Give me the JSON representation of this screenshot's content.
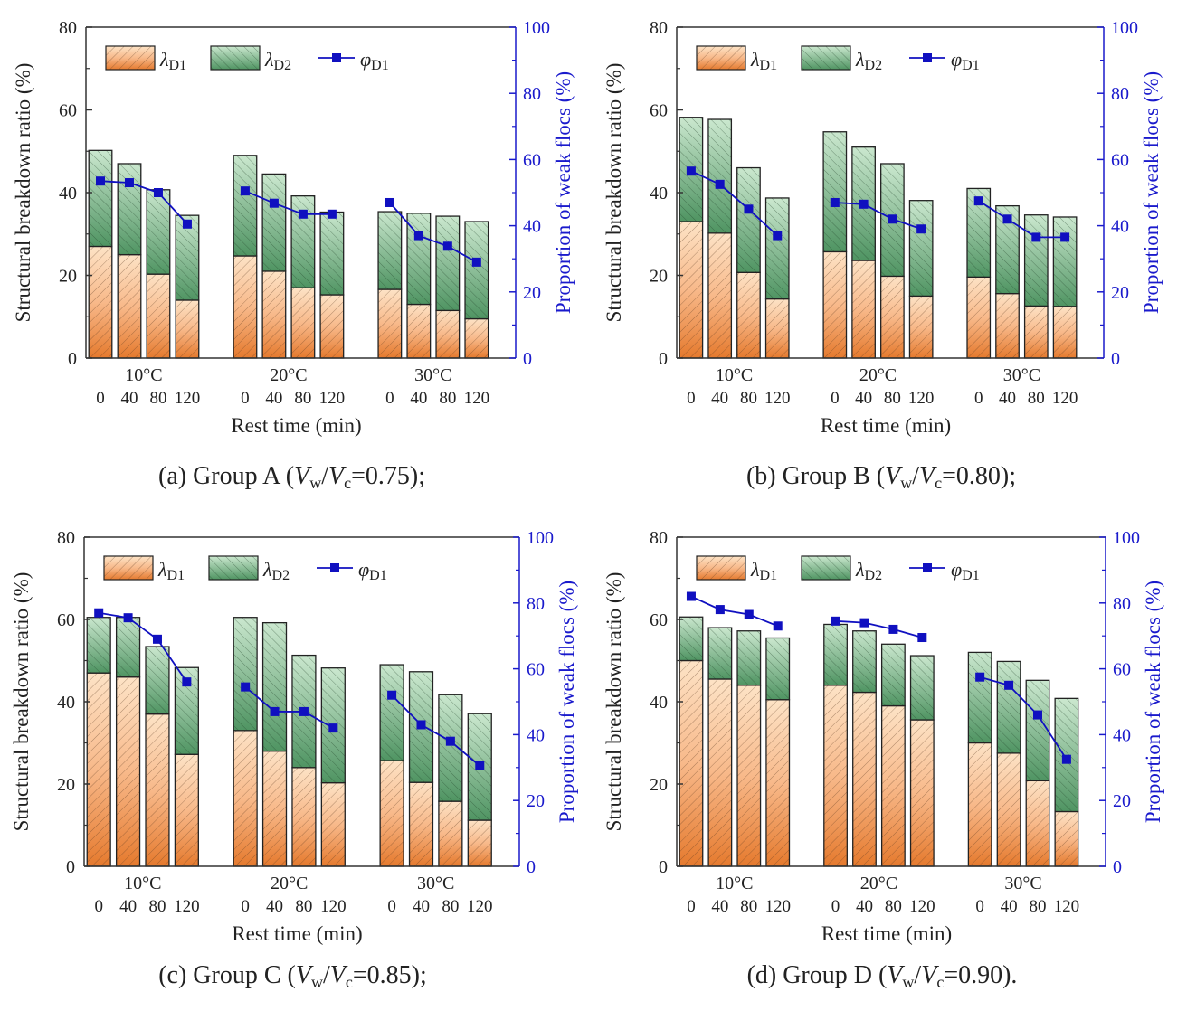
{
  "colors": {
    "lambda_d1": "#e8843f",
    "lambda_d1_light": "#fde3c6",
    "lambda_d2": "#5a9e6c",
    "lambda_d2_light": "#cbe8cf",
    "phi": "#1010c0",
    "right_axis": "#1a1acc"
  },
  "chart_data": [
    {
      "type": "bar",
      "subtype": "stacked bar + line (dual axis)",
      "caption": {
        "prefix": "(a) Group A (",
        "v1": "V",
        "s1": "w",
        "slash": "/",
        "v2": "V",
        "s2": "c",
        "suffix": "=0.75);"
      },
      "ylabel": "Structural breakdown ratio (%)",
      "y2label": "Proportion of weak flocs (%)",
      "xlabel": "Rest time (min)",
      "ylim": [
        0,
        80
      ],
      "y2lim": [
        0,
        100
      ],
      "yticks": [
        "0",
        "20",
        "40",
        "60",
        "80"
      ],
      "y2ticks": [
        "0",
        "20",
        "40",
        "60",
        "80",
        "100"
      ],
      "groups": [
        "10°C",
        "20°C",
        "30°C"
      ],
      "categories": [
        "0",
        "40",
        "80",
        "120"
      ],
      "legend": [
        {
          "sym": "λ",
          "sub": "D1"
        },
        {
          "sym": "λ",
          "sub": "D2"
        },
        {
          "sym": "φ",
          "sub": "D1"
        }
      ],
      "legend_position": "top-left",
      "lambda_d1": [
        27,
        25,
        20.3,
        14,
        24.7,
        21,
        17,
        15.3,
        16.6,
        13,
        11.5,
        9.5
      ],
      "lambda_total": [
        50.2,
        47,
        40.7,
        34.5,
        49,
        44.5,
        39.2,
        35.3,
        35.4,
        35,
        34.3,
        33
      ],
      "phi_d1": [
        53.5,
        53,
        50,
        40.5,
        50.5,
        46.8,
        43.5,
        43.5,
        47,
        37,
        33.8,
        29
      ]
    },
    {
      "type": "bar",
      "subtype": "stacked bar + line (dual axis)",
      "caption": {
        "prefix": "(b) Group B (",
        "v1": "V",
        "s1": "w",
        "slash": "/",
        "v2": "V",
        "s2": "c",
        "suffix": "=0.80);"
      },
      "ylabel": "Structural breakdown ratio (%)",
      "y2label": "Proportion of weak flocs (%)",
      "xlabel": "Rest time (min)",
      "ylim": [
        0,
        80
      ],
      "y2lim": [
        0,
        100
      ],
      "yticks": [
        "0",
        "20",
        "40",
        "60",
        "80"
      ],
      "y2ticks": [
        "0",
        "20",
        "40",
        "60",
        "80",
        "100"
      ],
      "groups": [
        "10°C",
        "20°C",
        "30°C"
      ],
      "categories": [
        "0",
        "40",
        "80",
        "120"
      ],
      "legend": [
        {
          "sym": "λ",
          "sub": "D1"
        },
        {
          "sym": "λ",
          "sub": "D2"
        },
        {
          "sym": "φ",
          "sub": "D1"
        }
      ],
      "legend_position": "top-left",
      "lambda_d1": [
        33,
        30.2,
        20.7,
        14.3,
        25.7,
        23.6,
        19.8,
        15,
        19.6,
        15.6,
        12.6,
        12.5
      ],
      "lambda_total": [
        58.2,
        57.7,
        46,
        38.7,
        54.7,
        51,
        47,
        38.1,
        41,
        36.8,
        34.6,
        34.1
      ],
      "phi_d1": [
        56.5,
        52.5,
        45,
        37,
        47,
        46.5,
        42,
        39,
        47.5,
        42,
        36.5,
        36.5
      ]
    },
    {
      "type": "bar",
      "subtype": "stacked bar + line (dual axis)",
      "caption": {
        "prefix": "(c) Group C (",
        "v1": "V",
        "s1": "w",
        "slash": "/",
        "v2": "V",
        "s2": "c",
        "suffix": "=0.85);"
      },
      "ylabel": "Structural breakdown ratio (%)",
      "y2label": "Proportion of weak flocs (%)",
      "xlabel": "Rest time (min)",
      "ylim": [
        0,
        80
      ],
      "y2lim": [
        0,
        100
      ],
      "yticks": [
        "0",
        "20",
        "40",
        "60",
        "80"
      ],
      "y2ticks": [
        "0",
        "20",
        "40",
        "60",
        "80",
        "100"
      ],
      "groups": [
        "10°C",
        "20°C",
        "30°C"
      ],
      "categories": [
        "0",
        "40",
        "80",
        "120"
      ],
      "legend": [
        {
          "sym": "λ",
          "sub": "D1"
        },
        {
          "sym": "λ",
          "sub": "D2"
        },
        {
          "sym": "φ",
          "sub": "D1"
        }
      ],
      "legend_position": "top-left",
      "lambda_d1": [
        47,
        46,
        37,
        27.2,
        33,
        28,
        24,
        20.3,
        25.7,
        20.4,
        15.8,
        11.2
      ],
      "lambda_total": [
        60.5,
        60.5,
        53.4,
        48.3,
        60.5,
        59.2,
        51.3,
        48.2,
        49,
        47.3,
        41.7,
        37.1
      ],
      "phi_d1": [
        77,
        75.5,
        69,
        56,
        54.5,
        47,
        47,
        42,
        52,
        43,
        38,
        30.5
      ]
    },
    {
      "type": "bar",
      "subtype": "stacked bar + line (dual axis)",
      "caption": {
        "prefix": "(d) Group D (",
        "v1": "V",
        "s1": "w",
        "slash": "/",
        "v2": "V",
        "s2": "c",
        "suffix": "=0.90)."
      },
      "ylabel": "Structural breakdown ratio (%)",
      "y2label": "Proportion of weak flocs (%)",
      "xlabel": "Rest time (min)",
      "ylim": [
        0,
        80
      ],
      "y2lim": [
        0,
        100
      ],
      "yticks": [
        "0",
        "20",
        "40",
        "60",
        "80"
      ],
      "y2ticks": [
        "0",
        "20",
        "40",
        "60",
        "80",
        "100"
      ],
      "groups": [
        "10°C",
        "20°C",
        "30°C"
      ],
      "categories": [
        "0",
        "40",
        "80",
        "120"
      ],
      "legend": [
        {
          "sym": "λ",
          "sub": "D1"
        },
        {
          "sym": "λ",
          "sub": "D2"
        },
        {
          "sym": "φ",
          "sub": "D1"
        }
      ],
      "legend_position": "top-left",
      "lambda_d1": [
        50,
        45.5,
        44,
        40.5,
        44,
        42.3,
        39,
        35.6,
        30,
        27.5,
        20.8,
        13.3
      ],
      "lambda_total": [
        60.6,
        58,
        57.2,
        55.5,
        58.8,
        57.2,
        54,
        51.2,
        52,
        49.8,
        45.2,
        40.8
      ],
      "phi_d1": [
        82,
        78,
        76.5,
        73,
        74.5,
        74,
        72,
        69.5,
        57.5,
        55,
        46,
        32.5
      ]
    }
  ]
}
